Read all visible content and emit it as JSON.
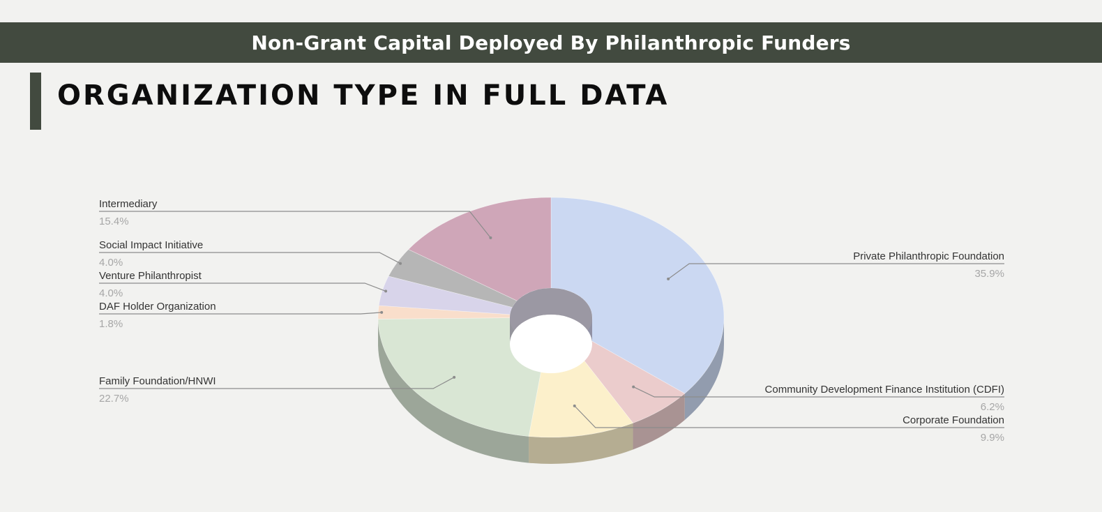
{
  "header": {
    "banner_title": "Non-Grant Capital Deployed By Philanthropic Funders"
  },
  "section": {
    "title": "ORGANIZATION TYPE IN FULL DATA"
  },
  "chart_data": {
    "type": "pie",
    "donut": true,
    "three_d": true,
    "legend_placement": "callout labels",
    "slices": [
      {
        "label": "Private Philanthropic Foundation",
        "value": 35.9,
        "display": "35.9%",
        "color": "#cbd8f2"
      },
      {
        "label": "Community Development Finance Institution (CDFI)",
        "value": 6.2,
        "display": "6.2%",
        "color": "#ebcccc"
      },
      {
        "label": "Corporate Foundation",
        "value": 9.9,
        "display": "9.9%",
        "color": "#fcf0cb"
      },
      {
        "label": "Family Foundation/HNWI",
        "value": 22.7,
        "display": "22.7%",
        "color": "#d9e6d4"
      },
      {
        "label": "DAF Holder Organization",
        "value": 1.8,
        "display": "1.8%",
        "color": "#f9decb"
      },
      {
        "label": "Venture Philanthropist",
        "value": 4.0,
        "display": "4.0%",
        "color": "#d8d4ea"
      },
      {
        "label": "Social Impact Initiative",
        "value": 4.0,
        "display": "4.0%",
        "color": "#b6b6b6"
      },
      {
        "label": "Intermediary",
        "value": 15.4,
        "display": "15.4%",
        "color": "#cfa6b8"
      }
    ]
  }
}
